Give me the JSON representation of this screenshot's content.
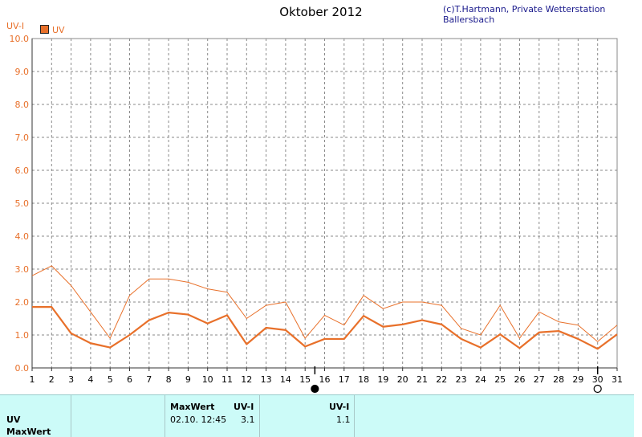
{
  "header": {
    "title": "Oktober 2012",
    "copyright": "(c)T.Hartmann, Private Wetterstation Ballersbach"
  },
  "chart_data": {
    "type": "line",
    "ylabel": "UV-I",
    "ylim": [
      0,
      10
    ],
    "yticks": [
      "0.0",
      "1.0",
      "2.0",
      "3.0",
      "4.0",
      "5.0",
      "6.0",
      "7.0",
      "8.0",
      "9.0",
      "10.0"
    ],
    "x": [
      1,
      2,
      3,
      4,
      5,
      6,
      7,
      8,
      9,
      10,
      11,
      12,
      13,
      14,
      15,
      16,
      17,
      18,
      19,
      20,
      21,
      22,
      23,
      24,
      25,
      26,
      27,
      28,
      29,
      30,
      31
    ],
    "grid": true,
    "legend_position": "top-left",
    "series": [
      {
        "name": "UV",
        "style": "max-thin",
        "color": "#e8702a",
        "values": [
          2.8,
          3.1,
          2.5,
          1.7,
          0.9,
          2.2,
          2.7,
          2.7,
          2.6,
          2.4,
          2.3,
          1.5,
          1.9,
          2.0,
          0.9,
          1.6,
          1.3,
          2.2,
          1.8,
          2.0,
          2.0,
          1.9,
          1.2,
          1.0,
          1.9,
          0.9,
          1.7,
          1.4,
          1.3,
          0.8,
          1.3
        ]
      },
      {
        "name": "",
        "style": "avg-thick",
        "color": "#e8702a",
        "values": [
          1.85,
          1.85,
          1.05,
          0.75,
          0.62,
          1.0,
          1.45,
          1.68,
          1.62,
          1.35,
          1.6,
          0.72,
          1.22,
          1.15,
          0.65,
          0.88,
          0.88,
          1.58,
          1.25,
          1.32,
          1.45,
          1.32,
          0.88,
          0.62,
          1.02,
          0.6,
          1.08,
          1.12,
          0.88,
          0.58,
          1.02
        ]
      }
    ],
    "moon_phases": [
      {
        "day": 15.5,
        "phase": "new"
      },
      {
        "day": 30,
        "phase": "full"
      }
    ]
  },
  "table": {
    "row1_label": "UV",
    "row2_label": "MaxWert",
    "maxwert_header": "MaxWert",
    "unit_header_1": "UV-I",
    "unit_header_2": "UV-I",
    "max_datetime": "02.10.  12:45",
    "max_value": "3.1",
    "second_value": "1.1"
  }
}
